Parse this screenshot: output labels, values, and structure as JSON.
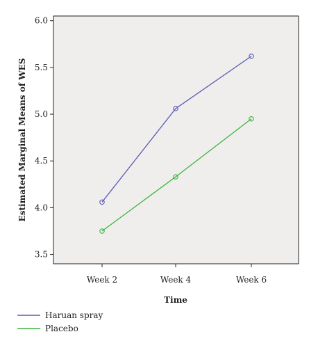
{
  "chart_data": {
    "type": "line",
    "title": "",
    "xlabel": "Time",
    "ylabel": "Estimated Marginal Means of WES",
    "categories": [
      "Week 2",
      "Week 4",
      "Week 6"
    ],
    "series": [
      {
        "name": "Haruan spray",
        "values": [
          4.06,
          5.06,
          5.62
        ],
        "color": "#5a5ab4"
      },
      {
        "name": "Placebo",
        "values": [
          3.75,
          4.33,
          4.95
        ],
        "color": "#3cb43c"
      }
    ],
    "ylim": [
      3.4,
      6.05
    ],
    "yticks": [
      "3.5",
      "4.0",
      "4.5",
      "5.0",
      "5.5",
      "6.0"
    ],
    "grid": false,
    "legend_position": "bottom-left",
    "plot_background": "#efeeed",
    "axis_color": "#222222"
  }
}
